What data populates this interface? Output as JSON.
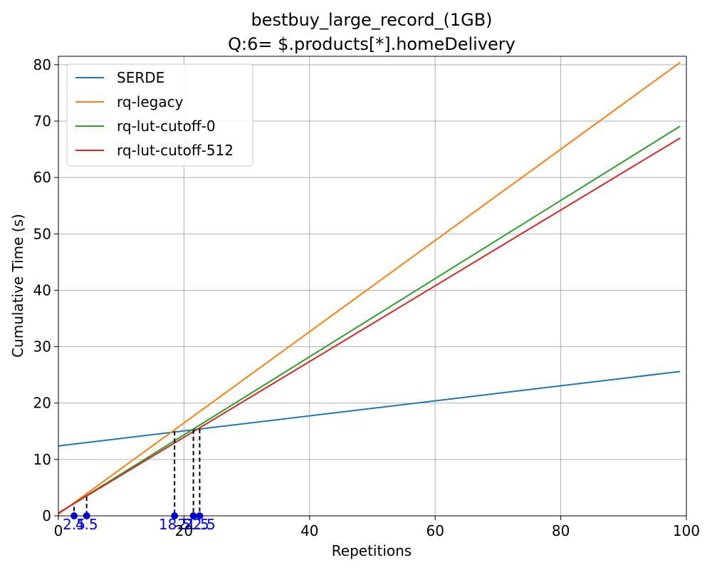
{
  "chart_data": {
    "type": "line",
    "title": [
      "bestbuy_large_record_(1GB)",
      "Q:6= $.products[*].homeDelivery"
    ],
    "xlabel": "Repetitions",
    "ylabel": "Cumulative Time (s)",
    "xlim": [
      0,
      100
    ],
    "ylim": [
      0,
      81.5
    ],
    "xticks": [
      0,
      20,
      40,
      60,
      80,
      100
    ],
    "yticks": [
      0,
      10,
      20,
      30,
      40,
      50,
      60,
      70,
      80
    ],
    "grid": true,
    "legend_position": "upper-left",
    "series": [
      {
        "name": "SERDE",
        "color": "#1f77b4",
        "x": [
          0,
          99
        ],
        "y": [
          12.4,
          25.6
        ]
      },
      {
        "name": "rq-legacy",
        "color": "#ff7f0e",
        "x": [
          0,
          99
        ],
        "y": [
          0.3,
          80.4
        ]
      },
      {
        "name": "rq-lut-cutoff-0",
        "color": "#2ca02c",
        "x": [
          0,
          99
        ],
        "y": [
          0.5,
          69.1
        ]
      },
      {
        "name": "rq-lut-cutoff-512",
        "color": "#d62728",
        "x": [
          0,
          99
        ],
        "y": [
          0.5,
          67.0
        ]
      }
    ],
    "annotations": [
      {
        "x": 2.5,
        "y": 1.6,
        "label": "2.5"
      },
      {
        "x": 4.5,
        "y": 3.4,
        "label": "4.5"
      },
      {
        "x": 18.5,
        "y": 15.0,
        "label": "18.5"
      },
      {
        "x": 21.5,
        "y": 15.3,
        "label": "21.5"
      },
      {
        "x": 22.5,
        "y": 15.4,
        "label": "22.5"
      }
    ],
    "annotation_color": "#0000ff"
  }
}
